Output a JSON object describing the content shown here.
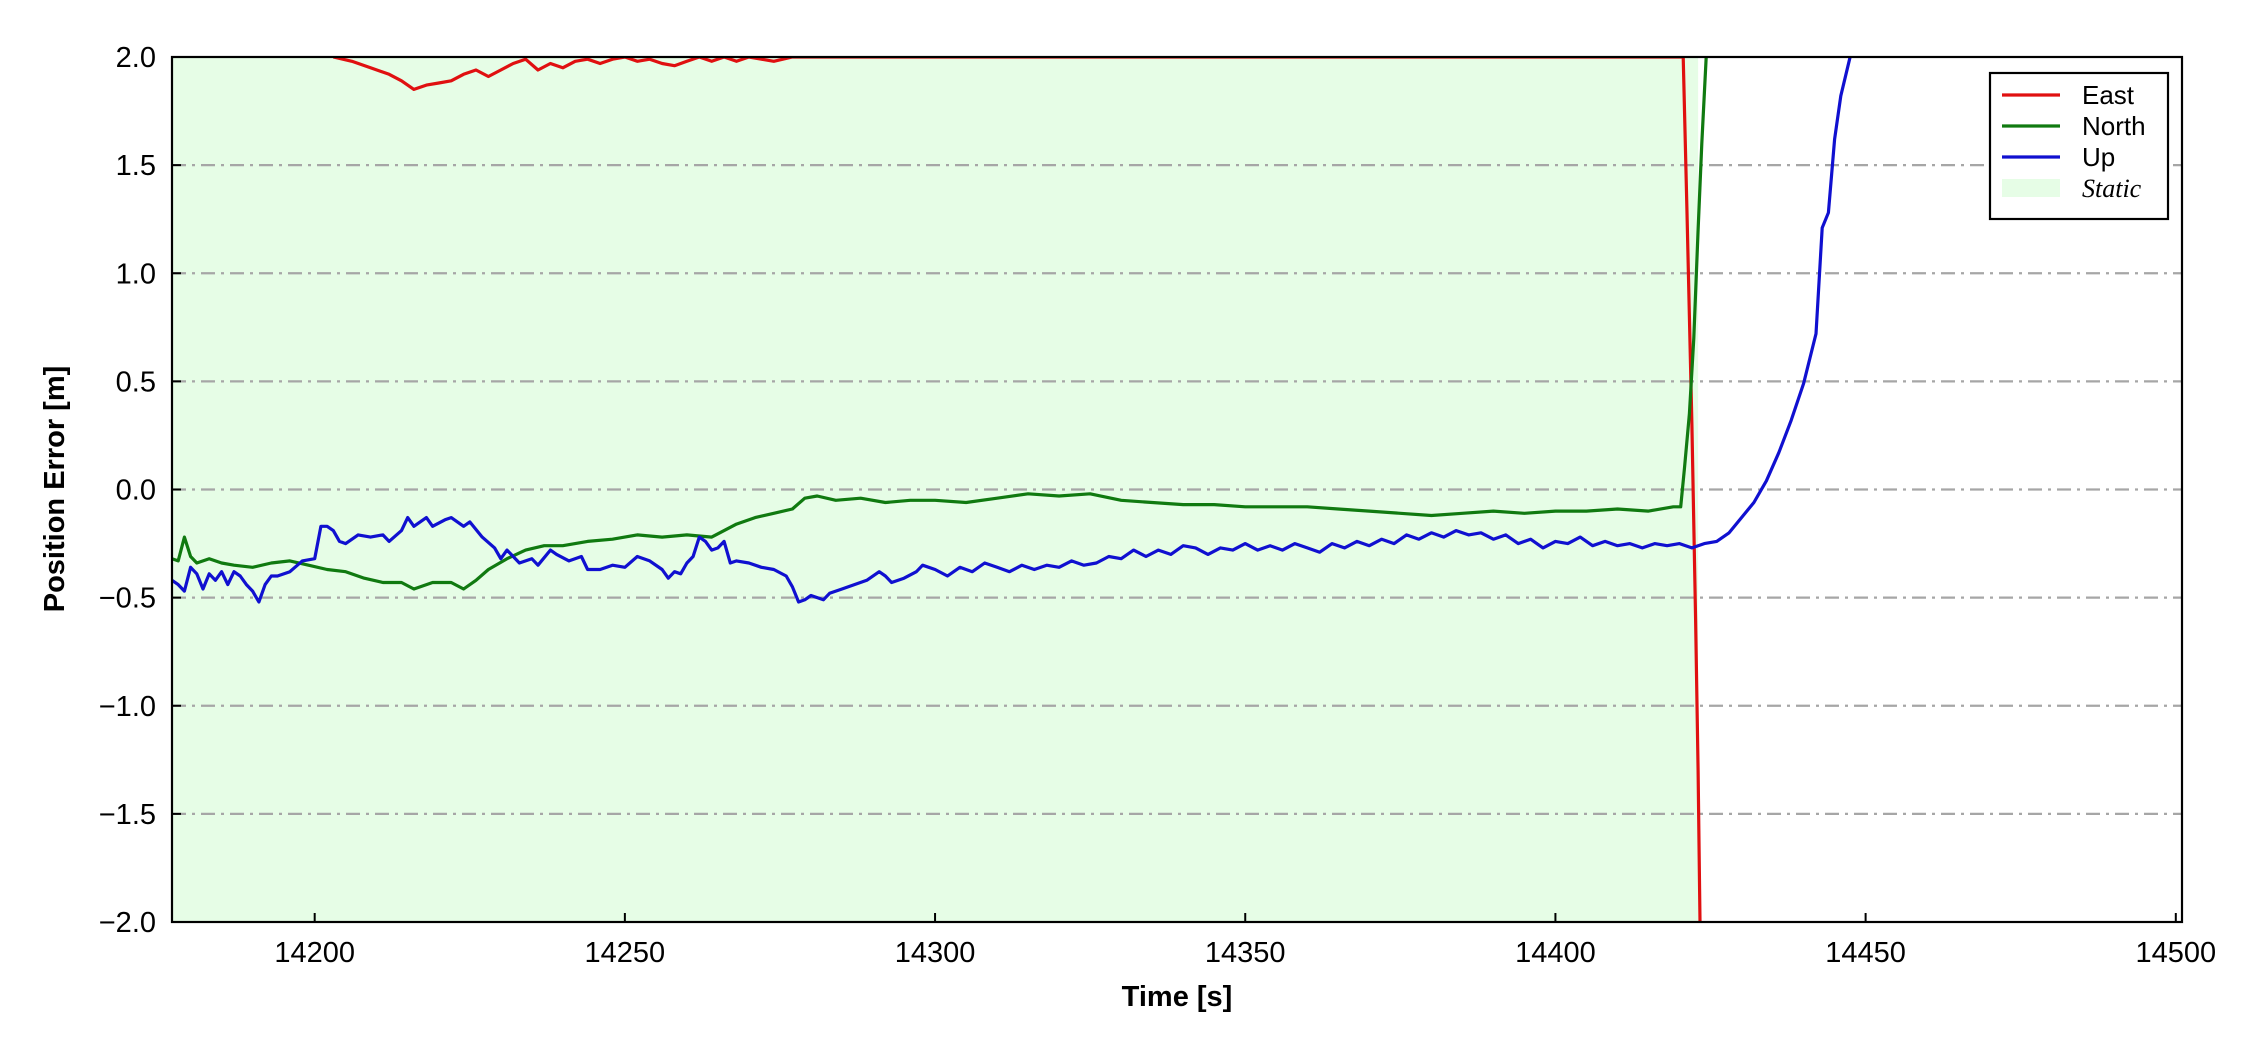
{
  "chart_data": {
    "type": "line",
    "xlabel": "Time [s]",
    "ylabel": "Position Error [m]",
    "xlim": [
      14177,
      14501
    ],
    "ylim": [
      -2.0,
      2.0
    ],
    "xticks": [
      14200,
      14250,
      14300,
      14350,
      14400,
      14450,
      14500
    ],
    "yticks": [
      -2.0,
      -1.5,
      -1.0,
      -0.5,
      0.0,
      0.5,
      1.0,
      1.5,
      2.0
    ],
    "ytick_labels": [
      "−2.0",
      "−1.5",
      "−1.0",
      "−0.5",
      "0.0",
      "0.5",
      "1.0",
      "1.5",
      "2.0"
    ],
    "grid": "horizontal dash-dot",
    "legend_position": "top-right",
    "static_region": {
      "label": "Static",
      "x": [
        14177,
        14423
      ],
      "color": "#e6fde6"
    },
    "series": [
      {
        "name": "East",
        "color": "#e01010",
        "points": [
          [
            14203,
            2.0
          ],
          [
            14206,
            1.98
          ],
          [
            14209,
            1.95
          ],
          [
            14212,
            1.92
          ],
          [
            14214,
            1.89
          ],
          [
            14216,
            1.85
          ],
          [
            14218,
            1.87
          ],
          [
            14220,
            1.88
          ],
          [
            14222,
            1.89
          ],
          [
            14224,
            1.92
          ],
          [
            14226,
            1.94
          ],
          [
            14228,
            1.91
          ],
          [
            14230,
            1.94
          ],
          [
            14232,
            1.97
          ],
          [
            14234,
            1.99
          ],
          [
            14236,
            1.94
          ],
          [
            14238,
            1.97
          ],
          [
            14240,
            1.95
          ],
          [
            14242,
            1.98
          ],
          [
            14244,
            1.99
          ],
          [
            14246,
            1.97
          ],
          [
            14248,
            1.99
          ],
          [
            14250,
            2.0
          ],
          [
            14252,
            1.98
          ],
          [
            14254,
            1.99
          ],
          [
            14256,
            1.97
          ],
          [
            14258,
            1.96
          ],
          [
            14260,
            1.98
          ],
          [
            14262,
            2.0
          ],
          [
            14264,
            1.98
          ],
          [
            14266,
            2.0
          ],
          [
            14268,
            1.98
          ],
          [
            14270,
            2.0
          ],
          [
            14272,
            1.99
          ],
          [
            14274,
            1.98
          ],
          [
            14277,
            2.0
          ],
          [
            14420.6,
            2.0
          ],
          [
            14421.2,
            1.3
          ],
          [
            14422.0,
            0.3
          ],
          [
            14422.6,
            -0.6
          ],
          [
            14423.0,
            -1.3
          ],
          [
            14423.3,
            -2.0
          ]
        ]
      },
      {
        "name": "North",
        "color": "#107a10",
        "points": [
          [
            14177,
            -0.32
          ],
          [
            14178,
            -0.33
          ],
          [
            14179,
            -0.22
          ],
          [
            14180,
            -0.31
          ],
          [
            14181,
            -0.34
          ],
          [
            14183,
            -0.32
          ],
          [
            14185,
            -0.34
          ],
          [
            14187,
            -0.35
          ],
          [
            14190,
            -0.36
          ],
          [
            14193,
            -0.34
          ],
          [
            14196,
            -0.33
          ],
          [
            14199,
            -0.35
          ],
          [
            14202,
            -0.37
          ],
          [
            14205,
            -0.38
          ],
          [
            14208,
            -0.41
          ],
          [
            14211,
            -0.43
          ],
          [
            14214,
            -0.43
          ],
          [
            14216,
            -0.46
          ],
          [
            14219,
            -0.43
          ],
          [
            14222,
            -0.43
          ],
          [
            14224,
            -0.46
          ],
          [
            14226,
            -0.42
          ],
          [
            14228,
            -0.37
          ],
          [
            14231,
            -0.32
          ],
          [
            14234,
            -0.28
          ],
          [
            14237,
            -0.26
          ],
          [
            14240,
            -0.26
          ],
          [
            14244,
            -0.24
          ],
          [
            14248,
            -0.23
          ],
          [
            14252,
            -0.21
          ],
          [
            14256,
            -0.22
          ],
          [
            14260,
            -0.21
          ],
          [
            14264,
            -0.22
          ],
          [
            14266,
            -0.19
          ],
          [
            14268,
            -0.16
          ],
          [
            14271,
            -0.13
          ],
          [
            14274,
            -0.11
          ],
          [
            14277,
            -0.09
          ],
          [
            14279,
            -0.04
          ],
          [
            14281,
            -0.03
          ],
          [
            14284,
            -0.05
          ],
          [
            14288,
            -0.04
          ],
          [
            14292,
            -0.06
          ],
          [
            14296,
            -0.05
          ],
          [
            14300,
            -0.05
          ],
          [
            14305,
            -0.06
          ],
          [
            14310,
            -0.04
          ],
          [
            14315,
            -0.02
          ],
          [
            14320,
            -0.03
          ],
          [
            14325,
            -0.02
          ],
          [
            14330,
            -0.05
          ],
          [
            14335,
            -0.06
          ],
          [
            14340,
            -0.07
          ],
          [
            14345,
            -0.07
          ],
          [
            14350,
            -0.08
          ],
          [
            14355,
            -0.08
          ],
          [
            14360,
            -0.08
          ],
          [
            14365,
            -0.09
          ],
          [
            14370,
            -0.1
          ],
          [
            14375,
            -0.11
          ],
          [
            14380,
            -0.12
          ],
          [
            14385,
            -0.11
          ],
          [
            14390,
            -0.1
          ],
          [
            14395,
            -0.11
          ],
          [
            14400,
            -0.1
          ],
          [
            14405,
            -0.1
          ],
          [
            14410,
            -0.09
          ],
          [
            14415,
            -0.1
          ],
          [
            14419,
            -0.08
          ],
          [
            14420.2,
            -0.08
          ],
          [
            14420.8,
            0.1
          ],
          [
            14421.6,
            0.35
          ],
          [
            14422.3,
            0.7
          ],
          [
            14423.0,
            1.2
          ],
          [
            14423.6,
            1.6
          ],
          [
            14424.3,
            2.0
          ]
        ]
      },
      {
        "name": "Up",
        "color": "#1010d0",
        "points": [
          [
            14177,
            -0.42
          ],
          [
            14178,
            -0.44
          ],
          [
            14179,
            -0.47
          ],
          [
            14180,
            -0.36
          ],
          [
            14181,
            -0.39
          ],
          [
            14182,
            -0.46
          ],
          [
            14183,
            -0.39
          ],
          [
            14184,
            -0.42
          ],
          [
            14185,
            -0.38
          ],
          [
            14186,
            -0.44
          ],
          [
            14187,
            -0.38
          ],
          [
            14188,
            -0.4
          ],
          [
            14189,
            -0.44
          ],
          [
            14190,
            -0.47
          ],
          [
            14191,
            -0.52
          ],
          [
            14192,
            -0.44
          ],
          [
            14193,
            -0.4
          ],
          [
            14194,
            -0.4
          ],
          [
            14196,
            -0.38
          ],
          [
            14198,
            -0.33
          ],
          [
            14200,
            -0.32
          ],
          [
            14201,
            -0.17
          ],
          [
            14202,
            -0.17
          ],
          [
            14203,
            -0.19
          ],
          [
            14204,
            -0.24
          ],
          [
            14205,
            -0.25
          ],
          [
            14207,
            -0.21
          ],
          [
            14209,
            -0.22
          ],
          [
            14211,
            -0.21
          ],
          [
            14212,
            -0.24
          ],
          [
            14214,
            -0.19
          ],
          [
            14215,
            -0.13
          ],
          [
            14216,
            -0.17
          ],
          [
            14218,
            -0.13
          ],
          [
            14219,
            -0.17
          ],
          [
            14221,
            -0.14
          ],
          [
            14222,
            -0.13
          ],
          [
            14224,
            -0.17
          ],
          [
            14225,
            -0.15
          ],
          [
            14227,
            -0.22
          ],
          [
            14229,
            -0.27
          ],
          [
            14230,
            -0.32
          ],
          [
            14231,
            -0.28
          ],
          [
            14232,
            -0.31
          ],
          [
            14233,
            -0.34
          ],
          [
            14235,
            -0.32
          ],
          [
            14236,
            -0.35
          ],
          [
            14238,
            -0.28
          ],
          [
            14239,
            -0.3
          ],
          [
            14241,
            -0.33
          ],
          [
            14243,
            -0.31
          ],
          [
            14244,
            -0.37
          ],
          [
            14246,
            -0.37
          ],
          [
            14248,
            -0.35
          ],
          [
            14250,
            -0.36
          ],
          [
            14252,
            -0.31
          ],
          [
            14254,
            -0.33
          ],
          [
            14256,
            -0.37
          ],
          [
            14257,
            -0.41
          ],
          [
            14258,
            -0.38
          ],
          [
            14259,
            -0.39
          ],
          [
            14260,
            -0.34
          ],
          [
            14261,
            -0.31
          ],
          [
            14262,
            -0.22
          ],
          [
            14263,
            -0.24
          ],
          [
            14264,
            -0.28
          ],
          [
            14265,
            -0.27
          ],
          [
            14266,
            -0.24
          ],
          [
            14267,
            -0.34
          ],
          [
            14268,
            -0.33
          ],
          [
            14270,
            -0.34
          ],
          [
            14272,
            -0.36
          ],
          [
            14274,
            -0.37
          ],
          [
            14276,
            -0.4
          ],
          [
            14277,
            -0.45
          ],
          [
            14278,
            -0.52
          ],
          [
            14279,
            -0.51
          ],
          [
            14280,
            -0.49
          ],
          [
            14282,
            -0.51
          ],
          [
            14283,
            -0.48
          ],
          [
            14285,
            -0.46
          ],
          [
            14287,
            -0.44
          ],
          [
            14289,
            -0.42
          ],
          [
            14291,
            -0.38
          ],
          [
            14292,
            -0.4
          ],
          [
            14293,
            -0.43
          ],
          [
            14295,
            -0.41
          ],
          [
            14297,
            -0.38
          ],
          [
            14298,
            -0.35
          ],
          [
            14300,
            -0.37
          ],
          [
            14302,
            -0.4
          ],
          [
            14304,
            -0.36
          ],
          [
            14306,
            -0.38
          ],
          [
            14308,
            -0.34
          ],
          [
            14310,
            -0.36
          ],
          [
            14312,
            -0.38
          ],
          [
            14314,
            -0.35
          ],
          [
            14316,
            -0.37
          ],
          [
            14318,
            -0.35
          ],
          [
            14320,
            -0.36
          ],
          [
            14322,
            -0.33
          ],
          [
            14324,
            -0.35
          ],
          [
            14326,
            -0.34
          ],
          [
            14328,
            -0.31
          ],
          [
            14330,
            -0.32
          ],
          [
            14332,
            -0.28
          ],
          [
            14334,
            -0.31
          ],
          [
            14336,
            -0.28
          ],
          [
            14338,
            -0.3
          ],
          [
            14340,
            -0.26
          ],
          [
            14342,
            -0.27
          ],
          [
            14344,
            -0.3
          ],
          [
            14346,
            -0.27
          ],
          [
            14348,
            -0.28
          ],
          [
            14350,
            -0.25
          ],
          [
            14352,
            -0.28
          ],
          [
            14354,
            -0.26
          ],
          [
            14356,
            -0.28
          ],
          [
            14358,
            -0.25
          ],
          [
            14360,
            -0.27
          ],
          [
            14362,
            -0.29
          ],
          [
            14364,
            -0.25
          ],
          [
            14366,
            -0.27
          ],
          [
            14368,
            -0.24
          ],
          [
            14370,
            -0.26
          ],
          [
            14372,
            -0.23
          ],
          [
            14374,
            -0.25
          ],
          [
            14376,
            -0.21
          ],
          [
            14378,
            -0.23
          ],
          [
            14380,
            -0.2
          ],
          [
            14382,
            -0.22
          ],
          [
            14384,
            -0.19
          ],
          [
            14386,
            -0.21
          ],
          [
            14388,
            -0.2
          ],
          [
            14390,
            -0.23
          ],
          [
            14392,
            -0.21
          ],
          [
            14394,
            -0.25
          ],
          [
            14396,
            -0.23
          ],
          [
            14398,
            -0.27
          ],
          [
            14400,
            -0.24
          ],
          [
            14402,
            -0.25
          ],
          [
            14404,
            -0.22
          ],
          [
            14406,
            -0.26
          ],
          [
            14408,
            -0.24
          ],
          [
            14410,
            -0.26
          ],
          [
            14412,
            -0.25
          ],
          [
            14414,
            -0.27
          ],
          [
            14416,
            -0.25
          ],
          [
            14418,
            -0.26
          ],
          [
            14420,
            -0.25
          ],
          [
            14422,
            -0.27
          ],
          [
            14424,
            -0.25
          ],
          [
            14426,
            -0.24
          ],
          [
            14428,
            -0.2
          ],
          [
            14430,
            -0.13
          ],
          [
            14432,
            -0.06
          ],
          [
            14434,
            0.04
          ],
          [
            14436,
            0.17
          ],
          [
            14438,
            0.32
          ],
          [
            14440,
            0.49
          ],
          [
            14442,
            0.72
          ],
          [
            14443,
            1.21
          ],
          [
            14444,
            1.28
          ],
          [
            14445,
            1.62
          ],
          [
            14446,
            1.82
          ],
          [
            14447.5,
            2.0
          ]
        ]
      }
    ]
  }
}
